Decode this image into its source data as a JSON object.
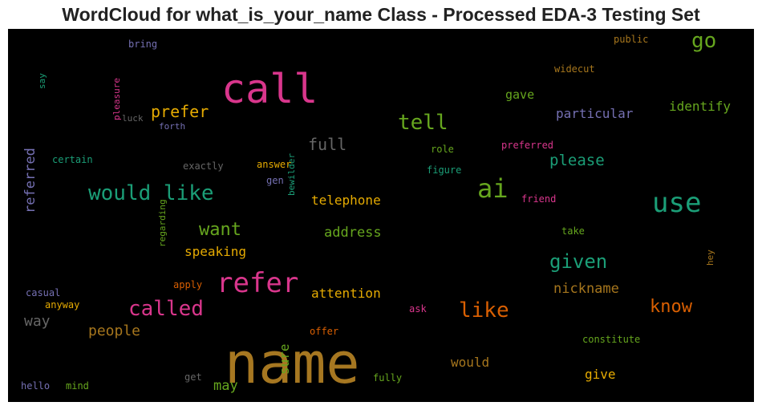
{
  "title": "WordCloud for what_is_your_name Class - Processed EDA-3 Testing Set",
  "words": [
    {
      "text": "name",
      "color": "#a67721"
    },
    {
      "text": "call",
      "color": "#d9368c"
    },
    {
      "text": "use",
      "color": "#1b9e77"
    },
    {
      "text": "refer",
      "color": "#d9368c"
    },
    {
      "text": "ai",
      "color": "#66a61e"
    },
    {
      "text": "would like",
      "color": "#1b9e77"
    },
    {
      "text": "called",
      "color": "#d9368c"
    },
    {
      "text": "tell",
      "color": "#66a61e"
    },
    {
      "text": "go",
      "color": "#66a61e"
    },
    {
      "text": "like",
      "color": "#d95f02"
    },
    {
      "text": "given",
      "color": "#1b9e77"
    },
    {
      "text": "know",
      "color": "#d95f02"
    },
    {
      "text": "want",
      "color": "#66a61e"
    },
    {
      "text": "prefer",
      "color": "#e6ab02"
    },
    {
      "text": "full",
      "color": "#666666"
    },
    {
      "text": "please",
      "color": "#1b9e77"
    },
    {
      "text": "people",
      "color": "#a6761d"
    },
    {
      "text": "way",
      "color": "#666666"
    },
    {
      "text": "nickname",
      "color": "#a6761d"
    },
    {
      "text": "particular",
      "color": "#7570b3"
    },
    {
      "text": "identify",
      "color": "#66a61e"
    },
    {
      "text": "address",
      "color": "#66a61e"
    },
    {
      "text": "speaking",
      "color": "#e6ab02"
    },
    {
      "text": "attention",
      "color": "#e6ab02"
    },
    {
      "text": "telephone",
      "color": "#e6ab02"
    },
    {
      "text": "may",
      "color": "#66a61e"
    },
    {
      "text": "would",
      "color": "#a6761d"
    },
    {
      "text": "give",
      "color": "#e6ab02"
    },
    {
      "text": "gave",
      "color": "#66a61e"
    },
    {
      "text": "referred",
      "color": "#7570b3"
    },
    {
      "text": "sure",
      "color": "#66a61e"
    },
    {
      "text": "bring",
      "color": "#7570b3"
    },
    {
      "text": "pleasure",
      "color": "#d9368c"
    },
    {
      "text": "say",
      "color": "#1b9e77"
    },
    {
      "text": "luck",
      "color": "#666666"
    },
    {
      "text": "forth",
      "color": "#7570b3"
    },
    {
      "text": "bewilder",
      "color": "#1b9e77"
    },
    {
      "text": "certain",
      "color": "#1b9e77"
    },
    {
      "text": "regarding",
      "color": "#66a61e"
    },
    {
      "text": "exactly",
      "color": "#666666"
    },
    {
      "text": "answer",
      "color": "#e6ab02"
    },
    {
      "text": "gen",
      "color": "#7570b3"
    },
    {
      "text": "role",
      "color": "#66a61e"
    },
    {
      "text": "figure",
      "color": "#1b9e77"
    },
    {
      "text": "preferred",
      "color": "#d9368c"
    },
    {
      "text": "friend",
      "color": "#d9368c"
    },
    {
      "text": "public",
      "color": "#a6761d"
    },
    {
      "text": "widecut",
      "color": "#a6761d"
    },
    {
      "text": "take",
      "color": "#66a61e"
    },
    {
      "text": "hey",
      "color": "#a6761d"
    },
    {
      "text": "casual",
      "color": "#7570b3"
    },
    {
      "text": "apply",
      "color": "#d95f02"
    },
    {
      "text": "anyway",
      "color": "#e6ab02"
    },
    {
      "text": "ask",
      "color": "#d9368c"
    },
    {
      "text": "offer",
      "color": "#d95f02"
    },
    {
      "text": "constitute",
      "color": "#66a61e"
    },
    {
      "text": "hello",
      "color": "#7570b3"
    },
    {
      "text": "mind",
      "color": "#66a61e"
    },
    {
      "text": "get",
      "color": "#666666"
    },
    {
      "text": "fully",
      "color": "#66a61e"
    }
  ]
}
